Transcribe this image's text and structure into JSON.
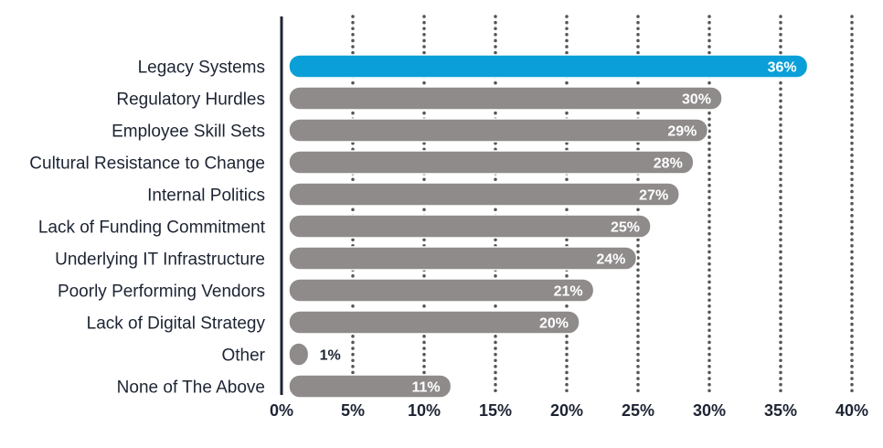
{
  "chart_data": {
    "type": "bar",
    "orientation": "horizontal",
    "categories": [
      "Legacy Systems",
      "Regulatory Hurdles",
      "Employee Skill Sets",
      "Cultural Resistance to Change",
      "Internal Politics",
      "Lack of Funding Commitment",
      "Underlying IT Infrastructure",
      "Poorly Performing Vendors",
      "Lack of Digital Strategy",
      "Other",
      "None of The Above"
    ],
    "values": [
      36,
      30,
      29,
      28,
      27,
      25,
      24,
      21,
      20,
      1,
      11
    ],
    "value_labels": [
      "36%",
      "30%",
      "29%",
      "28%",
      "27%",
      "25%",
      "24%",
      "21%",
      "20%",
      "1%",
      "11%"
    ],
    "xlim": [
      0,
      40
    ],
    "x_ticks": [
      0,
      5,
      10,
      15,
      20,
      25,
      30,
      35,
      40
    ],
    "x_tick_labels": [
      "0%",
      "5%",
      "10%",
      "15%",
      "20%",
      "25%",
      "30%",
      "35%",
      "40%"
    ],
    "grid": "vertical-dotted",
    "highlight_index": 0,
    "colors": {
      "highlight": "#0a9fd8",
      "bar": "#8f8b8b",
      "bar_outline": "#ffffff",
      "grid": "#555555",
      "axis": "#1d2433",
      "text": "#1d2433",
      "value_label": "#ffffff",
      "value_label_outside": "#1d2433"
    },
    "title": "",
    "xlabel": "",
    "ylabel": ""
  }
}
